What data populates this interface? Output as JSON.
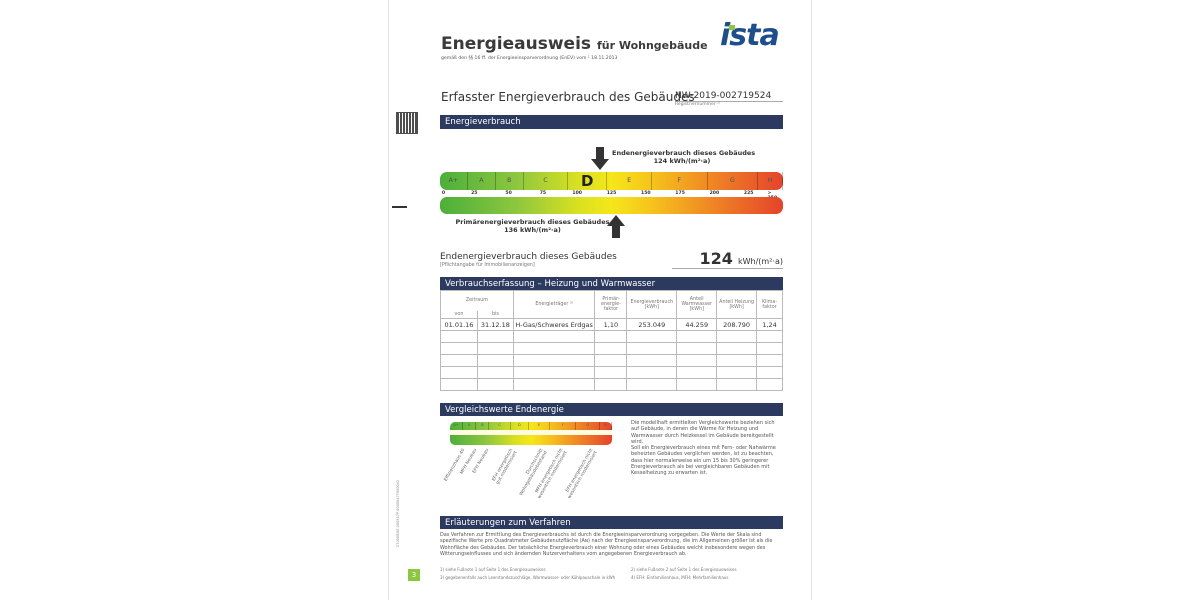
{
  "header": {
    "title": "Energieausweis",
    "title_suffix": "für Wohngebäude",
    "subtitle": "gemäß den §§ 16 ff. der Energieeinsparverordnung (EnEV) vom ¹ 18.11.2013",
    "logo": "ista"
  },
  "section": {
    "title": "Erfasster Energieverbrauch des Gebäudes",
    "registration_number": "NW-2019-002719524",
    "registration_label": "Registriernummer ²⁾"
  },
  "energy": {
    "bar_title": "Energieverbrauch",
    "classes": [
      "A+",
      "A",
      "B",
      "C",
      "D",
      "E",
      "F",
      "G",
      "H"
    ],
    "ticks": [
      "0",
      "25",
      "50",
      "75",
      "100",
      "125",
      "150",
      "175",
      "200",
      "225",
      "> 250"
    ],
    "current_class": "D",
    "end_label": "Endenergieverbrauch dieses Gebäudes",
    "end_value": "124 kWh/(m²·a)",
    "end_numeric": 124,
    "primary_label": "Primärenergieverbrauch dieses Gebäudes",
    "primary_value": "136 kWh/(m²·a)",
    "primary_numeric": 136,
    "summary_label": "Endenergieverbrauch dieses Gebäudes",
    "summary_note": "[Pflichtangabe für Immobilienanzeigen]",
    "summary_value": "124",
    "summary_unit": "kWh/(m²·a)"
  },
  "consumption": {
    "bar_title": "Verbrauchserfassung – Heizung und Warmwasser",
    "headers": {
      "period": "Zeitraum",
      "from": "von",
      "to": "bis",
      "carrier": "Energieträger ³⁾",
      "primary_factor": "Primär-energie-faktor",
      "consumption": "Energieverbrauch [kWh]",
      "hot_water": "Anteil Warmwasser [kWh]",
      "heating": "Anteil Heizung [kWh]",
      "climate": "Klima-faktor"
    },
    "rows": [
      {
        "from": "01.01.16",
        "to": "31.12.18",
        "carrier": "H-Gas/Schweres Erdgas",
        "primary_factor": "1,10",
        "consumption": "253.049",
        "hot_water": "44.259",
        "heating": "208.790",
        "climate": "1,24"
      }
    ]
  },
  "comparison": {
    "bar_title": "Vergleichswerte Endenergie",
    "labels": [
      "Effizienzhaus 40",
      "MFH Neubau",
      "EFH Neubau",
      "EFH energetisch\ngut modernisiert",
      "Durchschnitt\nWohngebäudebestand",
      "MFH energetisch nicht\nwesentlich modernisiert",
      "EFH energetisch nicht\nwesentlich modernisiert"
    ],
    "text": "Die modellhaft ermittelten Vergleichswerte beziehen sich auf Gebäude, in denen die Wärme für Heizung und Warmwasser durch Heizkessel im Gebäude bereitgestellt wird.\nSoll ein Energieverbrauch eines mit Fern- oder Nahwärme beheizten Gebäudes verglichen werden, ist zu beachten, dass hier normalerweise ein um 15 bis 30% geringerer Energieverbrauch als bei vergleichbaren Gebäuden mit Kesselheizung zu erwarten ist."
  },
  "explanation": {
    "bar_title": "Erläuterungen zum Verfahren",
    "text": "Das Verfahren zur Ermittlung des Energieverbrauchs ist durch die Energieeinsparverordnung vorgegeben. Die Werte der Skala sind spezifische Werte pro Quadratmeter Gebäudenutzfläche (Aɴ) nach der Energieeinsparverordnung, die im Allgemeinen größer ist als die Wohnfläche des Gebäudes. Der tatsächliche Energieverbrauch einer Wohnung oder eines Gebäudes weicht insbesondere wegen des Witterungseinflusses und sich ändernden Nutzerverhaltens vom angegebenen Energieverbrauch ab.",
    "footnotes": [
      "1) siehe Fußnote 1 auf Seite 1 des Energieausweises",
      "2) siehe Fußnote 2 auf Seite 1 des Energieausweises",
      "3) gegebenenfalls auch Leerstandszuschläge, Warmwasser- oder Kühlpauschale in kWh",
      "4) EFH: Einfamilienhaus, MFH: Mehrfamilienhaus"
    ],
    "page_number": "3"
  },
  "side_code": "27000BDE 000547P 0000047F000042"
}
